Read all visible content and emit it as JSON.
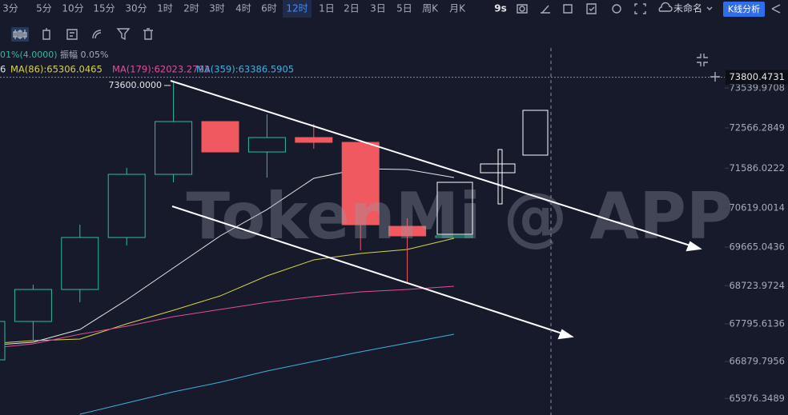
{
  "toolbar": {
    "intervals": [
      "3分",
      "5分",
      "10分",
      "15分",
      "30分",
      "1时",
      "2时",
      "3时",
      "4时",
      "6时",
      "12时",
      "1日",
      "2日",
      "3日",
      "5日",
      "周K",
      "月K"
    ],
    "active_index": 10,
    "right": [
      "9s",
      "未命名",
      "K线分析"
    ]
  },
  "info": [
    "01%(4.0000)",
    "振幅 0.05%"
  ],
  "chart_data": {
    "type": "candlestick",
    "categories": [
      null,
      null,
      null,
      null,
      null,
      null,
      null,
      null,
      null,
      null,
      null
    ],
    "open": [
      66918,
      67853,
      68632,
      69898,
      71436,
      72721,
      71981,
      72332,
      72215,
      70170,
      69898
    ],
    "high": [
      67853,
      68749,
      70209,
      71592,
      73676,
      72721,
      72897,
      72663,
      72274,
      70365,
      69937
    ],
    "low": [
      66918,
      67405,
      68320,
      69703,
      71241,
      71981,
      71358,
      72059,
      69586,
      68807,
      69898
    ],
    "close": [
      67853,
      68632,
      69898,
      71436,
      72721,
      71981,
      72332,
      72215,
      70209,
      69937,
      69937
    ],
    "up_color": "#2ebd9b",
    "down_color": "#f0595f",
    "series": [
      {
        "name": "6",
        "color": "#e6e6e6",
        "values": [
          67269,
          67347,
          67658,
          68379,
          69158,
          69937,
          70579,
          71339,
          71573,
          71553,
          71358
        ]
      },
      {
        "name": "MA(86):65306.0465",
        "color": "#d9d44a",
        "values": [
          67308,
          67386,
          67425,
          67795,
          68126,
          68476,
          68963,
          69352,
          69508,
          69606,
          69878
        ]
      },
      {
        "name": "MA(179):62023.2793",
        "color": "#e0509a",
        "values": [
          67191,
          67308,
          67541,
          67736,
          67970,
          68145,
          68320,
          68457,
          68574,
          68632,
          68710
        ]
      },
      {
        "name": "MA(359):63386.5905",
        "color": "#3fb2e0",
        "values": [
          null,
          null,
          65594,
          65867,
          66139,
          66373,
          66646,
          66879,
          67113,
          67327,
          67541
        ]
      }
    ],
    "ylim": [
      65575,
      74552
    ],
    "yticks": [
      73539.9708,
      72566.2849,
      71586.0222,
      70619.0014,
      69665.0436,
      68723.9724,
      67795.6136,
      66879.7956,
      65976.3489
    ],
    "current_price": 73800.4731,
    "annotation": {
      "value": 73600,
      "label": "73600.0000"
    },
    "watermark": "TokenMi @ APP"
  }
}
